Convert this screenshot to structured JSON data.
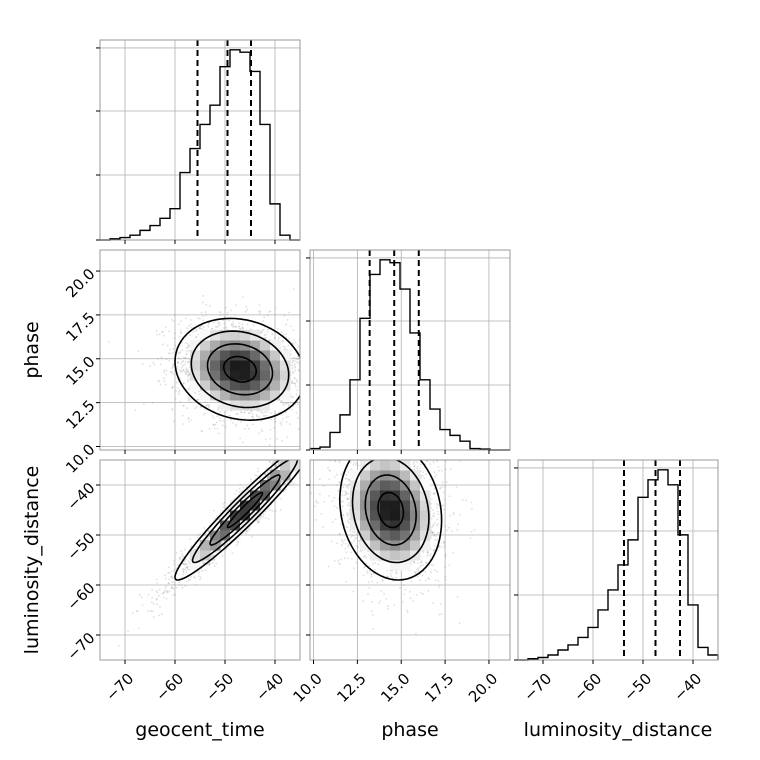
{
  "chart_data": {
    "type": "corner",
    "parameters": [
      {
        "name": "geocent_time",
        "range": [
          -75,
          -35
        ],
        "ticks": [
          -70,
          -60,
          -50,
          -40
        ],
        "tick_labels": [
          "−70",
          "−60",
          "−50",
          "−40"
        ],
        "quantiles": [
          -55.5,
          -49.5,
          -44.8
        ]
      },
      {
        "name": "phase",
        "range": [
          9.8,
          21.2
        ],
        "ticks": [
          10.0,
          12.5,
          15.0,
          17.5,
          20.0
        ],
        "tick_labels": [
          "10.0",
          "12.5",
          "15.0",
          "17.5",
          "20.0"
        ],
        "quantiles": [
          13.2,
          14.6,
          16.0
        ]
      },
      {
        "name": "luminosity_distance",
        "range": [
          -75,
          -35
        ],
        "ticks": [
          -70,
          -60,
          -50,
          -40
        ],
        "tick_labels": [
          "−70",
          "−60",
          "−50",
          "−40"
        ],
        "quantiles": [
          -53.8,
          -47.5,
          -42.6
        ]
      }
    ],
    "histograms": [
      {
        "parameter": "geocent_time",
        "bin_edges": [
          -75,
          -73,
          -71,
          -69,
          -67,
          -65,
          -63,
          -61,
          -59,
          -57,
          -55,
          -53,
          -51,
          -49,
          -47,
          -45,
          -43,
          -41,
          -39,
          -37,
          -35
        ],
        "counts": [
          0,
          0.5,
          1,
          2,
          4,
          6,
          9,
          13,
          28,
          38,
          48,
          56,
          72,
          79,
          78,
          70,
          48,
          15,
          2,
          0
        ]
      },
      {
        "parameter": "phase",
        "bin_edges": [
          9.8,
          10.37,
          10.94,
          11.51,
          12.08,
          12.65,
          13.22,
          13.79,
          14.36,
          14.93,
          15.5,
          16.07,
          16.64,
          17.21,
          17.78,
          18.35,
          18.92,
          19.49,
          20.06,
          20.63,
          21.2
        ],
        "counts": [
          0.5,
          1,
          6,
          12,
          24,
          45,
          60,
          65,
          64,
          55,
          40,
          24,
          14,
          7,
          5,
          3,
          0.5,
          0.3,
          0,
          0
        ]
      },
      {
        "parameter": "luminosity_distance",
        "bin_edges": [
          -75,
          -73,
          -71,
          -69,
          -67,
          -65,
          -63,
          -61,
          -59,
          -57,
          -55,
          -53,
          -51,
          -49,
          -47,
          -45,
          -43,
          -41,
          -39,
          -37,
          -35
        ],
        "counts": [
          0,
          0.5,
          1,
          2,
          4,
          6,
          9,
          13,
          20,
          28,
          38,
          48,
          65,
          72,
          76,
          70,
          50,
          22,
          5,
          2
        ]
      }
    ],
    "pairs": [
      {
        "x": "geocent_time",
        "y": "phase",
        "mean": [
          -47,
          14.4
        ],
        "sd": [
          6.5,
          1.45
        ],
        "corr": -0.15
      },
      {
        "x": "geocent_time",
        "y": "luminosity_distance",
        "mean": [
          -46,
          -45
        ],
        "sd": [
          7,
          7
        ],
        "corr": 0.96
      },
      {
        "x": "phase",
        "y": "luminosity_distance",
        "mean": [
          14.4,
          -45
        ],
        "sd": [
          1.45,
          7
        ],
        "corr": -0.15
      }
    ]
  }
}
